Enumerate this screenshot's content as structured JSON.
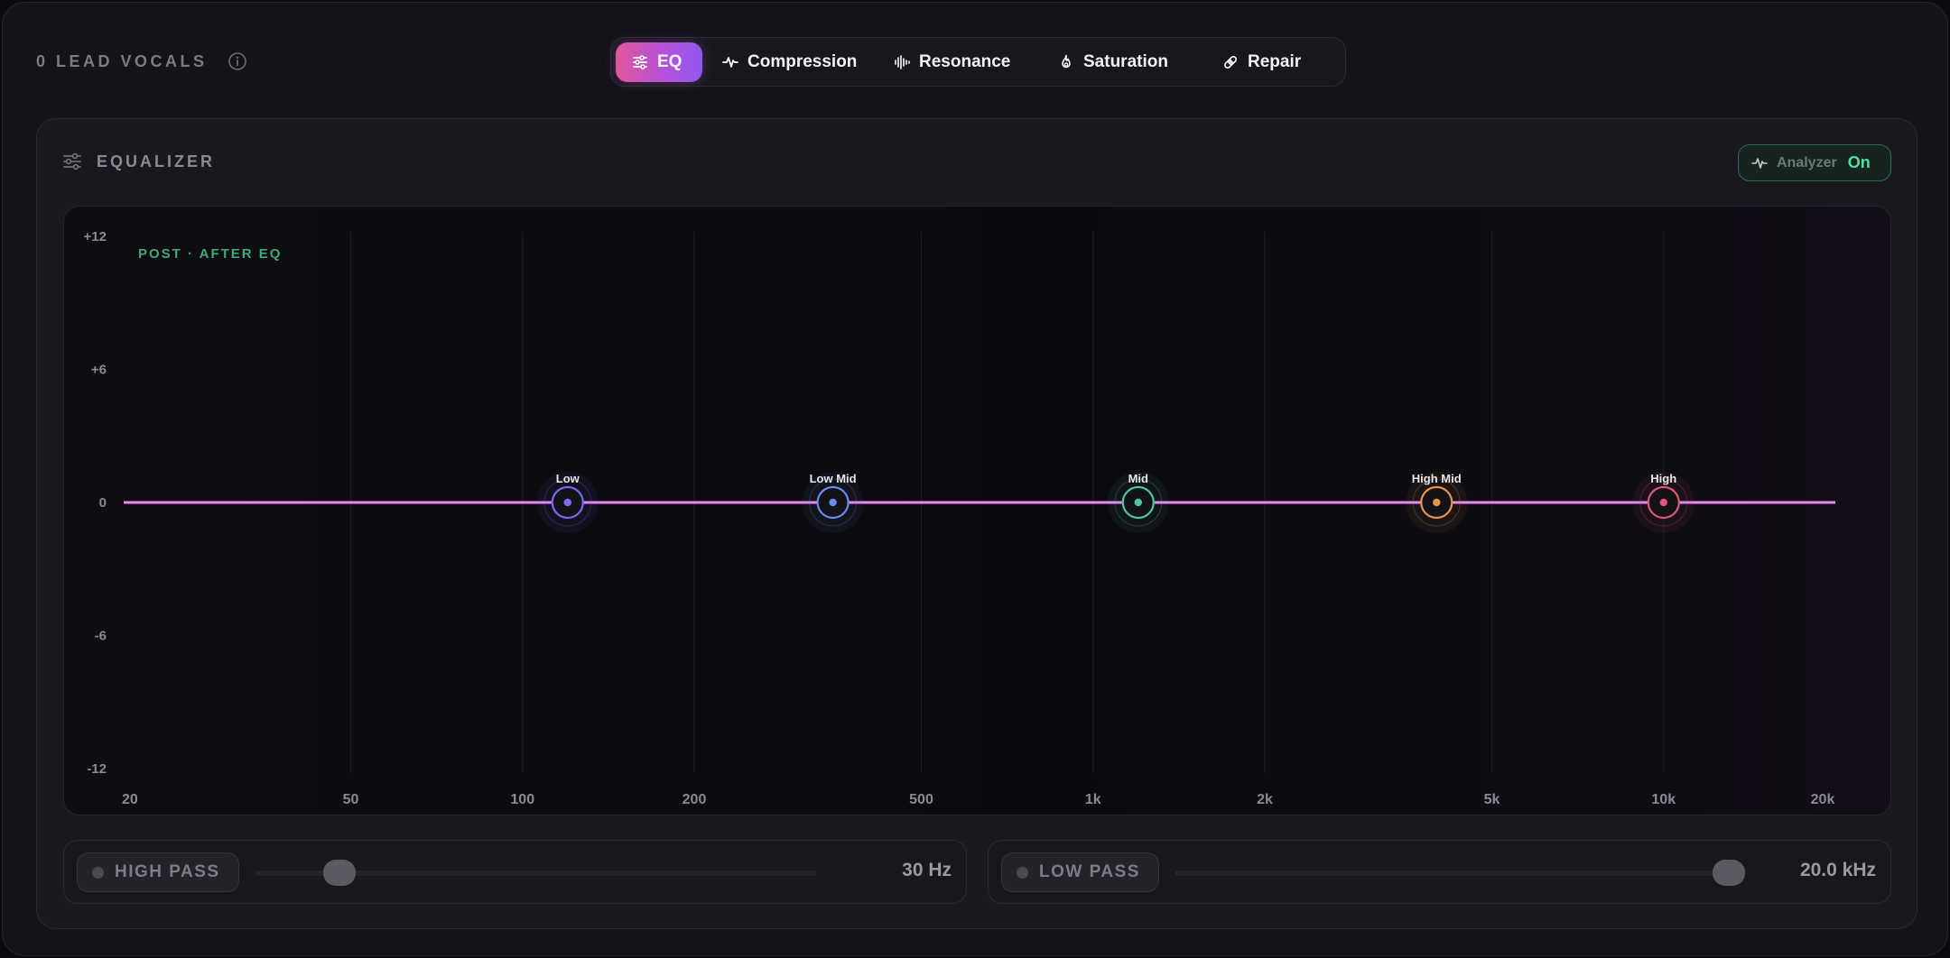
{
  "track": {
    "name": "0 LEAD VOCALS"
  },
  "tabs": [
    {
      "label": "EQ",
      "icon": "sliders-icon",
      "active": true
    },
    {
      "label": "Compression",
      "icon": "waveform-pulse-icon",
      "active": false
    },
    {
      "label": "Resonance",
      "icon": "resonance-bars-icon",
      "active": false
    },
    {
      "label": "Saturation",
      "icon": "flame-icon",
      "active": false
    },
    {
      "label": "Repair",
      "icon": "bandage-icon",
      "active": false
    }
  ],
  "eq": {
    "title": "EQUALIZER",
    "analyzer": {
      "label": "Analyzer",
      "state": "On"
    },
    "post_label": "POST · AFTER EQ",
    "db_labels": [
      "+12",
      "+6",
      "0",
      "-6",
      "-12"
    ],
    "freq_labels": [
      "20",
      "50",
      "100",
      "200",
      "500",
      "1k",
      "2k",
      "5k",
      "10k",
      "20k"
    ],
    "bands": [
      {
        "name": "Low",
        "freq_hz": 120,
        "gain_db": 0,
        "color": "#7a6cf0"
      },
      {
        "name": "Low Mid",
        "freq_hz": 350,
        "gain_db": 0,
        "color": "#6a8ee8"
      },
      {
        "name": "Mid",
        "freq_hz": 1200,
        "gain_db": 0,
        "color": "#4fc6a0"
      },
      {
        "name": "High Mid",
        "freq_hz": 4000,
        "gain_db": 0,
        "color": "#e8954a"
      },
      {
        "name": "High",
        "freq_hz": 10000,
        "gain_db": 0,
        "color": "#e0567a"
      }
    ],
    "curve_color": "#d65fe0"
  },
  "high_pass": {
    "label": "HIGH PASS",
    "value": "30 Hz",
    "position": 0.15
  },
  "low_pass": {
    "label": "LOW PASS",
    "value": "20.0 kHz",
    "position": 0.97
  },
  "colors": {
    "accent_green": "#4fe0a0",
    "tab_gradient_start": "#e0569c",
    "tab_gradient_end": "#8f58ef"
  }
}
